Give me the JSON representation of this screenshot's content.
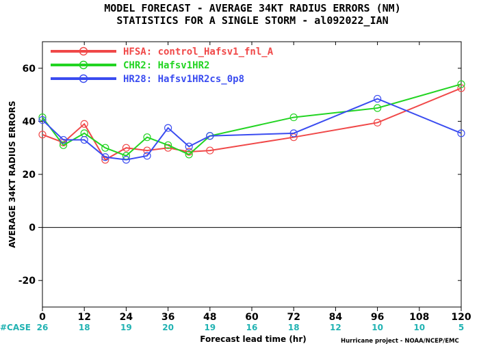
{
  "chart_data": {
    "type": "line",
    "title": "MODEL FORECAST - AVERAGE 34KT RADIUS ERRORS (NM)",
    "subtitle": "STATISTICS FOR A SINGLE STORM - al092022_IAN",
    "xlabel": "Forecast lead time (hr)",
    "ylabel": "AVERAGE 34KT RADIUS ERRORS",
    "xlim": [
      0,
      120
    ],
    "ylim": [
      -30,
      70
    ],
    "xticks": [
      "0",
      "12",
      "24",
      "36",
      "48",
      "60",
      "72",
      "84",
      "96",
      "108",
      "120"
    ],
    "yticks": [
      "-20",
      "0",
      "20",
      "40",
      "60"
    ],
    "zero_line": true,
    "legend_position": "top-left",
    "series": [
      {
        "name": "HFSA: control_Hafsv1_fnl_A",
        "color": "#f04848",
        "x": [
          0,
          6,
          12,
          18,
          24,
          30,
          36,
          42,
          48,
          72,
          96,
          120
        ],
        "y": [
          35,
          32,
          39,
          25.5,
          30,
          29,
          30,
          28.5,
          29,
          34,
          39.5,
          52.5
        ]
      },
      {
        "name": "CHR2: Hafsv1HR2",
        "color": "#22d422",
        "x": [
          0,
          6,
          12,
          18,
          24,
          30,
          36,
          42,
          48,
          72,
          96,
          120
        ],
        "y": [
          41.5,
          31,
          35.5,
          30,
          27,
          34,
          31,
          27.5,
          34.5,
          41.5,
          45,
          54
        ]
      },
      {
        "name": "HR28: Hafsv1HR2cs_0p8",
        "color": "#3a4cf0",
        "x": [
          0,
          6,
          12,
          18,
          24,
          30,
          36,
          42,
          48,
          72,
          96,
          120
        ],
        "y": [
          40.5,
          33,
          33,
          26.5,
          25.5,
          27,
          37.5,
          30.5,
          34.5,
          35.5,
          48.5,
          35.5
        ]
      }
    ],
    "cases": {
      "label": "#CASE",
      "x": [
        0,
        12,
        24,
        36,
        48,
        60,
        72,
        84,
        96,
        108,
        120
      ],
      "values": [
        "26",
        "18",
        "19",
        "20",
        "19",
        "16",
        "18",
        "12",
        "10",
        "10",
        "5"
      ],
      "color": "#20b2b2"
    },
    "credit": "Hurricane project - NOAA/NCEP/EMC"
  }
}
